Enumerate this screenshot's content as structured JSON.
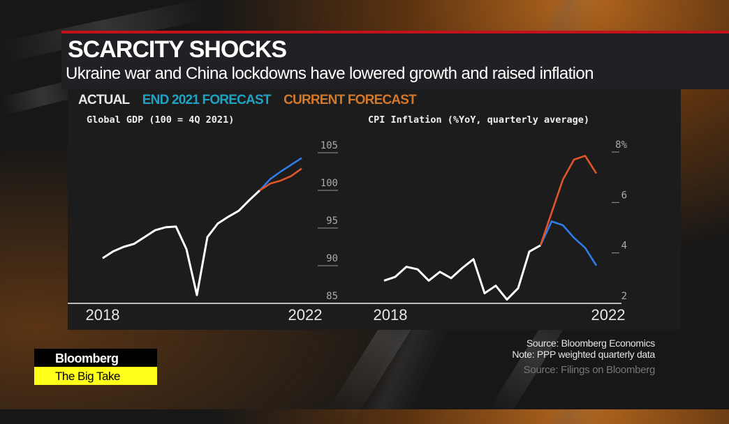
{
  "header": {
    "title": "SCARCITY SHOCKS",
    "subtitle": "Ukraine war and China lockdowns have lowered growth and raised inflation"
  },
  "legend": [
    {
      "label": "ACTUAL",
      "color": "#e8e8e8"
    },
    {
      "label": "END 2021 FORECAST",
      "color": "#1fa3c4"
    },
    {
      "label": "CURRENT FORECAST",
      "color": "#d4782a"
    }
  ],
  "colors": {
    "actual": "#ffffff",
    "end2021": "#2f7be8",
    "current": "#e0552c",
    "accent_red": "#c3121b",
    "brand_yellow": "#ffff1a"
  },
  "chart_data": [
    {
      "type": "line",
      "title": "Global GDP (100 = 4Q 2021)",
      "xlabel": "",
      "ylabel": "",
      "x_tick_labels": [
        "2018",
        "2022"
      ],
      "y_ticks": [
        "105",
        "100",
        "95",
        "90",
        "85"
      ],
      "ylim": [
        85,
        105
      ],
      "quarters": [
        "2018Q1",
        "2018Q2",
        "2018Q3",
        "2018Q4",
        "2019Q1",
        "2019Q2",
        "2019Q3",
        "2019Q4",
        "2020Q1",
        "2020Q2",
        "2020Q3",
        "2020Q4",
        "2021Q1",
        "2021Q2",
        "2021Q3",
        "2021Q4",
        "2022Q1",
        "2022Q2",
        "2022Q3",
        "2022Q4"
      ],
      "series": [
        {
          "name": "ACTUAL",
          "start": 0,
          "values": [
            91.0,
            91.9,
            92.5,
            92.9,
            93.8,
            94.7,
            95.1,
            95.2,
            92.2,
            86.1,
            93.8,
            95.6,
            96.5,
            97.3,
            98.7,
            100.0
          ]
        },
        {
          "name": "END 2021 FORECAST",
          "start": 15,
          "values": [
            100.0,
            101.5,
            102.5,
            103.4,
            104.3
          ]
        },
        {
          "name": "CURRENT FORECAST",
          "start": 15,
          "values": [
            100.0,
            100.9,
            101.3,
            101.9,
            102.9
          ]
        }
      ]
    },
    {
      "type": "line",
      "title": "CPI Inflation (%YoY, quarterly average)",
      "xlabel": "",
      "ylabel": "",
      "x_tick_labels": [
        "2018",
        "2022"
      ],
      "y_ticks": [
        "8%",
        "6",
        "4",
        "2"
      ],
      "ylim": [
        2,
        8
      ],
      "quarters": [
        "2018Q1",
        "2018Q2",
        "2018Q3",
        "2018Q4",
        "2019Q1",
        "2019Q2",
        "2019Q3",
        "2019Q4",
        "2020Q1",
        "2020Q2",
        "2020Q3",
        "2020Q4",
        "2021Q1",
        "2021Q2",
        "2021Q3",
        "2021Q4",
        "2022Q1",
        "2022Q2",
        "2022Q3",
        "2022Q4"
      ],
      "series": [
        {
          "name": "ACTUAL",
          "start": 0,
          "values": [
            2.9,
            3.05,
            3.45,
            3.35,
            2.9,
            3.25,
            3.0,
            3.4,
            3.75,
            2.4,
            2.7,
            2.15,
            2.6,
            4.05,
            4.3
          ]
        },
        {
          "name": "END 2021 FORECAST",
          "start": 14,
          "values": [
            4.3,
            5.25,
            5.1,
            4.6,
            4.2,
            3.5
          ]
        },
        {
          "name": "CURRENT FORECAST",
          "start": 14,
          "values": [
            4.3,
            5.6,
            6.9,
            7.7,
            7.85,
            7.15
          ]
        }
      ]
    }
  ],
  "source": {
    "line1": "Source: Bloomberg Economics",
    "line2": "Note: PPP weighted quarterly data",
    "ghost": "Source: Filings on Bloomberg"
  },
  "logo": {
    "brand": "Bloomberg",
    "show": "The Big Take"
  }
}
